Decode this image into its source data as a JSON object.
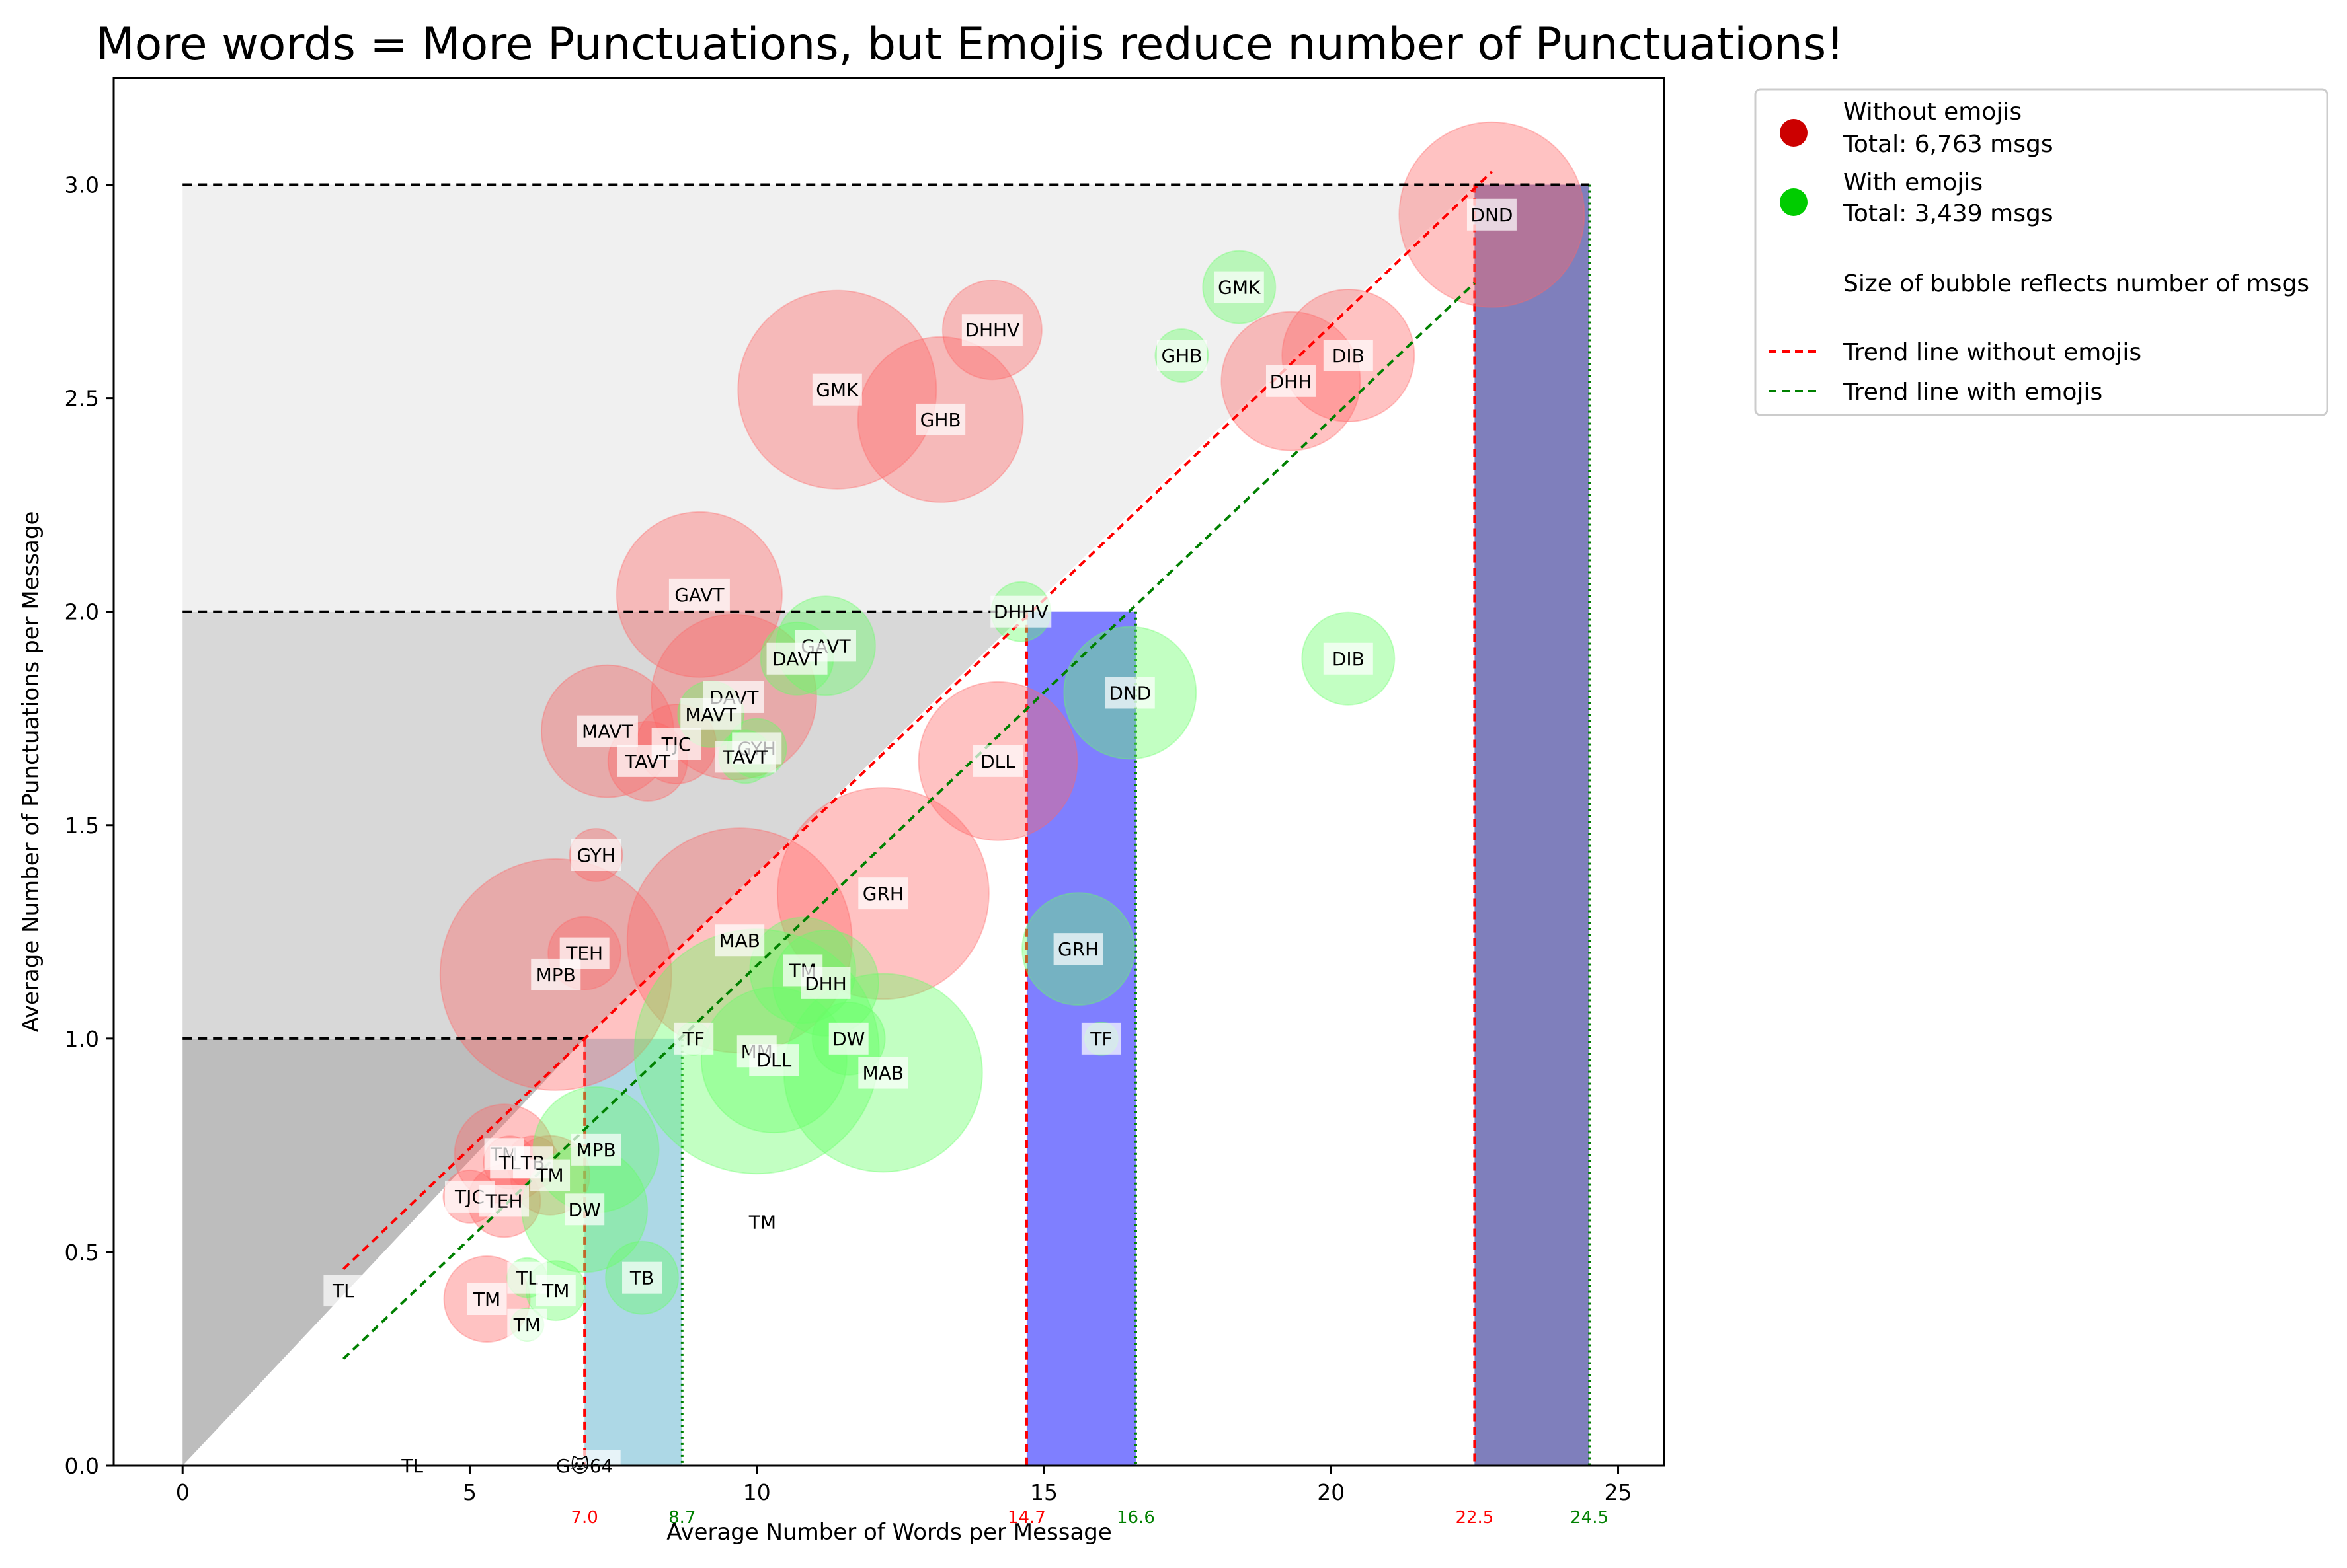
{
  "chart_data": {
    "type": "scatter",
    "title": "More words = More Punctuations, but Emojis reduce number of Punctuations!",
    "xlabel": "Average Number of Words per Message",
    "ylabel": "Average Number of Punctuations per Message",
    "xlim": [
      -1.2,
      25.8
    ],
    "ylim": [
      0,
      3.25
    ],
    "xticks": [
      "0",
      "5",
      "10",
      "15",
      "20",
      "25"
    ],
    "yticks": [
      "0.0",
      "0.5",
      "1.0",
      "1.5",
      "2.0",
      "2.5",
      "3.0"
    ],
    "grid": false,
    "legend_position": "outside-right",
    "colors": {
      "without": "#ff6666",
      "with": "#66ff66",
      "without_marker": "#cc0000",
      "with_marker": "#00cc00",
      "trend_without": "#ff0000",
      "trend_with": "#008000",
      "band_high": "#f0f0f0",
      "band_mid": "#d8d8d8",
      "band_low": "#bdbdbd",
      "light_blue": "#add8e6",
      "blue": "#0000ff"
    },
    "legend": {
      "without_label": "Without emojis",
      "without_total": "Total: 6,763 msgs",
      "with_label": "With emojis",
      "with_total": "Total: 3,439 msgs",
      "size_note": "Size of bubble reflects number of msgs",
      "trend_without_label": "Trend line without emojis",
      "trend_with_label": "Trend line with emojis"
    },
    "trend_without": {
      "x": [
        2.8,
        22.8
      ],
      "y": [
        0.46,
        3.03
      ]
    },
    "trend_with": {
      "x": [
        2.8,
        22.5
      ],
      "y": [
        0.25,
        2.77
      ]
    },
    "threshold_lines": [
      {
        "y": 1.0,
        "x_end": 7.0
      },
      {
        "y": 2.0,
        "x_end": 14.7
      },
      {
        "y": 3.0,
        "x_end": 22.5
      }
    ],
    "columns": [
      {
        "series": "without",
        "x": 7.0,
        "label": "7.0",
        "top": 1.0
      },
      {
        "series": "with",
        "x": 8.7,
        "label": "8.7",
        "top": 1.0
      },
      {
        "series": "without",
        "x": 14.7,
        "label": "14.7",
        "top": 2.0
      },
      {
        "series": "with",
        "x": 16.6,
        "label": "16.6",
        "top": 2.0
      },
      {
        "series": "without",
        "x": 22.5,
        "label": "22.5",
        "top": 3.0
      },
      {
        "series": "with",
        "x": 24.5,
        "label": "24.5",
        "top": 3.0
      }
    ],
    "series": [
      {
        "name": "Without emojis",
        "points": [
          {
            "label": "DND",
            "x": 22.8,
            "y": 2.93,
            "r": 140
          },
          {
            "label": "DHHV",
            "x": 14.1,
            "y": 2.66,
            "r": 75
          },
          {
            "label": "GMK",
            "x": 11.4,
            "y": 2.52,
            "r": 150
          },
          {
            "label": "GHB",
            "x": 13.2,
            "y": 2.45,
            "r": 125
          },
          {
            "label": "DIB",
            "x": 20.3,
            "y": 2.6,
            "r": 100
          },
          {
            "label": "DHH",
            "x": 19.3,
            "y": 2.54,
            "r": 105
          },
          {
            "label": "GAVT",
            "x": 9.0,
            "y": 2.04,
            "r": 125
          },
          {
            "label": "DAVT",
            "x": 9.6,
            "y": 1.8,
            "r": 125
          },
          {
            "label": "MAVT",
            "x": 7.4,
            "y": 1.72,
            "r": 100
          },
          {
            "label": "TJC",
            "x": 8.6,
            "y": 1.69,
            "r": 60
          },
          {
            "label": "TAVT",
            "x": 8.1,
            "y": 1.65,
            "r": 60
          },
          {
            "label": "DLL",
            "x": 14.2,
            "y": 1.65,
            "r": 120
          },
          {
            "label": "GRH",
            "x": 12.2,
            "y": 1.34,
            "r": 160
          },
          {
            "label": "GYH",
            "x": 7.2,
            "y": 1.43,
            "r": 40
          },
          {
            "label": "MAB",
            "x": 9.7,
            "y": 1.23,
            "r": 170
          },
          {
            "label": "TEH",
            "x": 7.0,
            "y": 1.2,
            "r": 55
          },
          {
            "label": "MPB",
            "x": 6.5,
            "y": 1.15,
            "r": 175
          },
          {
            "label": "TM",
            "x": 5.6,
            "y": 0.73,
            "r": 75
          },
          {
            "label": "TL",
            "x": 5.7,
            "y": 0.71,
            "r": 40
          },
          {
            "label": "TB",
            "x": 6.1,
            "y": 0.71,
            "r": 40
          },
          {
            "label": "TM",
            "x": 6.4,
            "y": 0.68,
            "r": 60
          },
          {
            "label": "TJC",
            "x": 5.0,
            "y": 0.63,
            "r": 40
          },
          {
            "label": "TEH",
            "x": 5.6,
            "y": 0.62,
            "r": 55
          },
          {
            "label": "TM",
            "x": 5.3,
            "y": 0.39,
            "r": 65
          }
        ]
      },
      {
        "name": "With emojis",
        "points": [
          {
            "label": "GMK",
            "x": 18.4,
            "y": 2.76,
            "r": 55
          },
          {
            "label": "GHB",
            "x": 17.4,
            "y": 2.6,
            "r": 40
          },
          {
            "label": "DHHV",
            "x": 14.6,
            "y": 2.0,
            "r": 45
          },
          {
            "label": "DIB",
            "x": 20.3,
            "y": 1.89,
            "r": 70
          },
          {
            "label": "GAVT",
            "x": 11.2,
            "y": 1.92,
            "r": 75
          },
          {
            "label": "DAVT",
            "x": 10.7,
            "y": 1.89,
            "r": 55
          },
          {
            "label": "DND",
            "x": 16.5,
            "y": 1.81,
            "r": 100
          },
          {
            "label": "MAVT",
            "x": 9.2,
            "y": 1.76,
            "r": 50
          },
          {
            "label": "GYH",
            "x": 10.0,
            "y": 1.68,
            "r": 45
          },
          {
            "label": "TAVT",
            "x": 9.8,
            "y": 1.66,
            "r": 40
          },
          {
            "label": "GRH",
            "x": 15.6,
            "y": 1.21,
            "r": 85
          },
          {
            "label": "TM",
            "x": 10.8,
            "y": 1.16,
            "r": 80
          },
          {
            "label": "DHH",
            "x": 11.2,
            "y": 1.13,
            "r": 80
          },
          {
            "label": "TF",
            "x": 8.9,
            "y": 1.0,
            "r": 25
          },
          {
            "label": "DW",
            "x": 11.6,
            "y": 1.0,
            "r": 55
          },
          {
            "label": "MM",
            "x": 10.0,
            "y": 0.97,
            "r": 185
          },
          {
            "label": "DLL",
            "x": 10.3,
            "y": 0.95,
            "r": 110
          },
          {
            "label": "MAB",
            "x": 12.2,
            "y": 0.92,
            "r": 150
          },
          {
            "label": "TF",
            "x": 16.0,
            "y": 1.0,
            "r": 25
          },
          {
            "label": "MPB",
            "x": 7.2,
            "y": 0.74,
            "r": 95
          },
          {
            "label": "DW",
            "x": 7.0,
            "y": 0.6,
            "r": 95
          },
          {
            "label": "TB",
            "x": 8.0,
            "y": 0.44,
            "r": 55
          },
          {
            "label": "TL",
            "x": 6.0,
            "y": 0.44,
            "r": 30
          },
          {
            "label": "TM",
            "x": 6.5,
            "y": 0.41,
            "r": 45
          },
          {
            "label": "TM",
            "x": 6.0,
            "y": 0.33,
            "r": 25
          },
          {
            "label": "TM",
            "x": 10.1,
            "y": 0.57,
            "r": 0
          },
          {
            "label": "TL",
            "x": 2.8,
            "y": 0.41,
            "r": 0
          },
          {
            "label": "TL",
            "x": 4.0,
            "y": 0.0,
            "r": 0
          },
          {
            "label": "G🐱64",
            "x": 7.0,
            "y": 0.0,
            "r": 0
          }
        ]
      }
    ]
  }
}
